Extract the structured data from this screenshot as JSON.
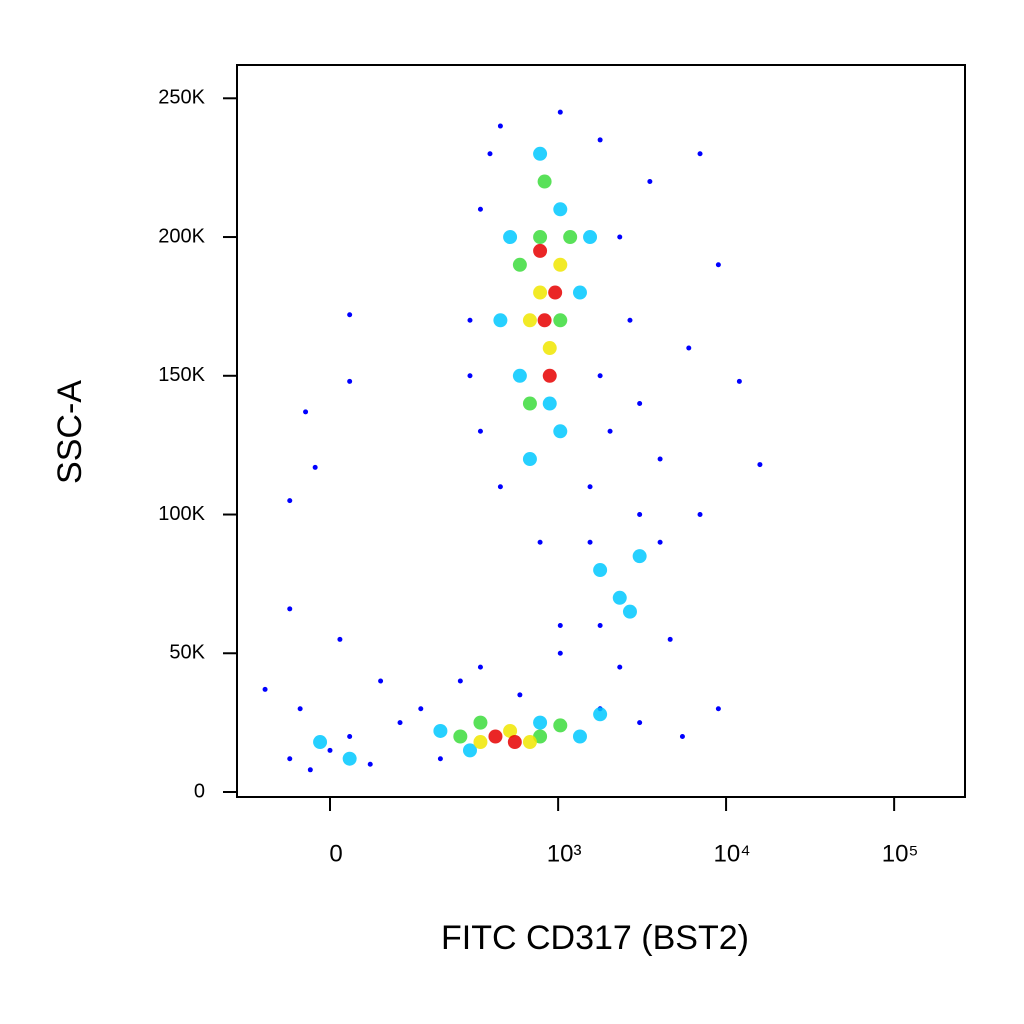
{
  "chart_data": {
    "type": "scatter",
    "xlabel": "FITC CD317 (BST2)",
    "ylabel": "SSC-A",
    "xscale": "biexponential",
    "xlim": [
      -145,
      264000
    ],
    "ylim": [
      -1800,
      262000
    ],
    "xticks": [
      0,
      {
        "value": 1000,
        "label": "10³"
      },
      {
        "value": 10000,
        "label": "10⁴"
      },
      {
        "value": 100000,
        "label": "10⁵"
      }
    ],
    "yticks": [
      0,
      {
        "value": 50000,
        "label": "50K"
      },
      {
        "value": 100000,
        "label": "100K"
      },
      {
        "value": 150000,
        "label": "150K"
      },
      {
        "value": 200000,
        "label": "200K"
      },
      {
        "value": 250000,
        "label": "250K"
      }
    ],
    "series": [
      {
        "color": "#0000ff",
        "x": [
          293,
          340,
          389,
          450,
          1030,
          1780,
          2330,
          2680,
          2040,
          1550,
          450,
          340,
          293,
          1780,
          3060,
          3520,
          7000,
          9000,
          12000,
          15900,
          6000,
          7000,
          4050,
          140,
          190,
          255,
          340,
          590,
          1030,
          1780,
          3060,
          5500,
          9000,
          780,
          1030,
          -89,
          -51,
          -24,
          0,
          24,
          51,
          -37,
          12,
          66,
          98,
          -51,
          -30,
          24,
          24,
          -18,
          -51,
          1550,
          1780,
          4050,
          4650,
          3060,
          2330
        ],
        "y": [
          170000,
          210000,
          230000,
          240000,
          245000,
          235000,
          200000,
          170000,
          130000,
          110000,
          110000,
          130000,
          150000,
          150000,
          140000,
          220000,
          230000,
          190000,
          148000,
          118000,
          160000,
          100000,
          120000,
          30000,
          12000,
          40000,
          45000,
          35000,
          50000,
          30000,
          25000,
          20000,
          30000,
          90000,
          60000,
          37000,
          12000,
          8000,
          15000,
          20000,
          10000,
          30000,
          55000,
          40000,
          25000,
          105000,
          137000,
          148000,
          172000,
          117000,
          66000,
          90000,
          60000,
          90000,
          55000,
          100000,
          45000
        ]
      },
      {
        "color": "#00c8ff",
        "x": [
          515,
          590,
          780,
          1030,
          1350,
          450,
          678,
          1030,
          1550,
          891,
          190,
          293,
          780,
          1350,
          1780,
          1780,
          2330,
          3060,
          2680,
          -12,
          24
        ],
        "y": [
          200000,
          150000,
          230000,
          210000,
          180000,
          170000,
          120000,
          130000,
          200000,
          140000,
          22000,
          15000,
          25000,
          20000,
          28000,
          80000,
          70000,
          85000,
          65000,
          18000,
          12000
        ]
      },
      {
        "color": "#3cdc3c",
        "x": [
          590,
          780,
          1030,
          678,
          1180,
          830,
          255,
          340,
          780,
          1030
        ],
        "y": [
          190000,
          200000,
          170000,
          140000,
          200000,
          220000,
          20000,
          25000,
          20000,
          24000
        ]
      },
      {
        "color": "#f0e600",
        "x": [
          780,
          891,
          678,
          1030,
          340,
          515,
          678
        ],
        "y": [
          180000,
          160000,
          170000,
          190000,
          18000,
          22000,
          18000
        ]
      },
      {
        "color": "#e60000",
        "x": [
          830,
          891,
          780,
          960,
          420,
          550
        ],
        "y": [
          170000,
          150000,
          195000,
          180000,
          20000,
          18000
        ]
      }
    ]
  }
}
